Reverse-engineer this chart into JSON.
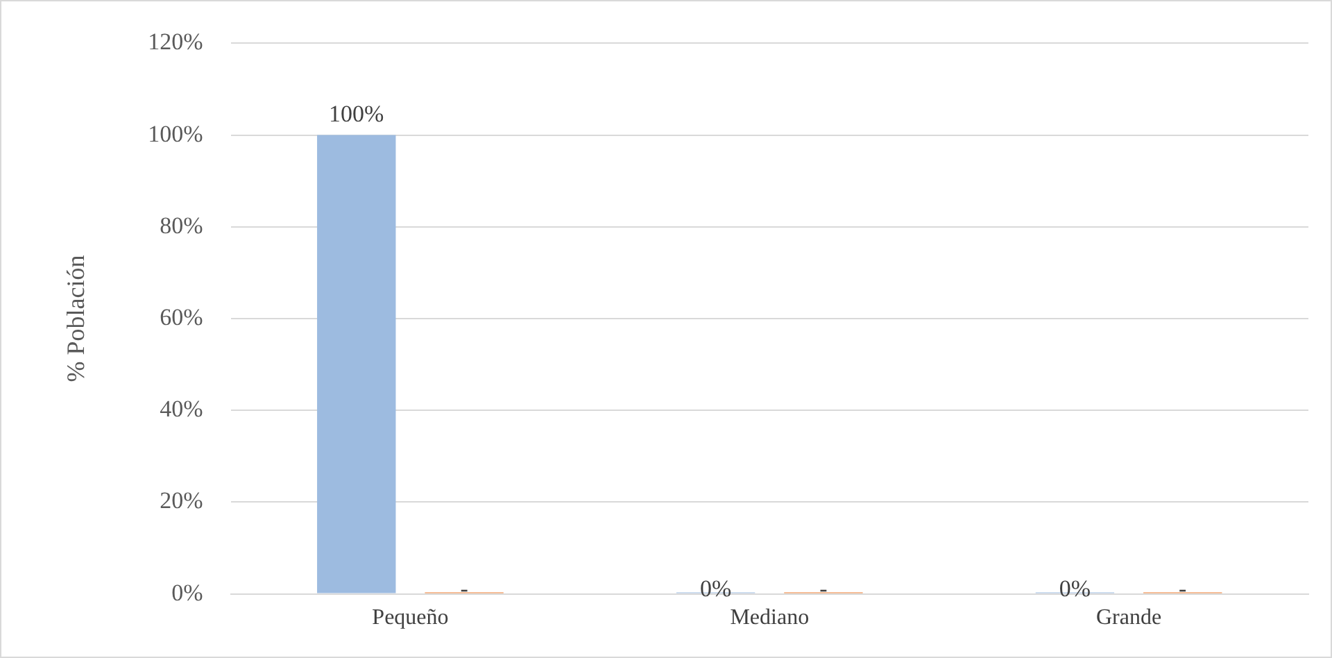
{
  "chart_data": {
    "type": "bar",
    "ylabel": "% Población",
    "categories": [
      "Pequeño",
      "Mediano",
      "Grande"
    ],
    "series": [
      {
        "color": "#9dbbe0",
        "values": [
          100,
          0,
          0
        ],
        "value_labels": [
          "100%",
          "0%",
          "0%"
        ]
      },
      {
        "color": "#ed7d31",
        "values": [
          0,
          0,
          0
        ],
        "value_labels": [
          "-",
          "-",
          "-"
        ]
      }
    ],
    "ylim": [
      0,
      120
    ],
    "yticks": [
      {
        "value": 0,
        "label": "0%"
      },
      {
        "value": 20,
        "label": "20%"
      },
      {
        "value": 40,
        "label": "40%"
      },
      {
        "value": 60,
        "label": "60%"
      },
      {
        "value": 80,
        "label": "80%"
      },
      {
        "value": 100,
        "label": "100%"
      },
      {
        "value": 120,
        "label": "120%"
      }
    ],
    "grid": "y",
    "legend": false
  }
}
